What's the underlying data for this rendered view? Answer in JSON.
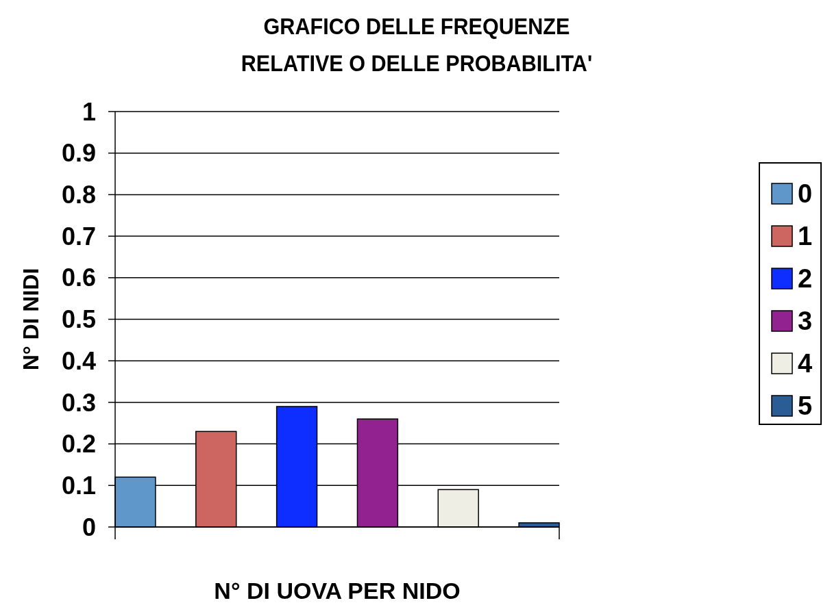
{
  "chart_data": {
    "type": "bar",
    "title": "GRAFICO DELLE FREQUENZE\nRELATIVE O DELLE PROBABILITA'",
    "xlabel": "N° DI UOVA PER NIDO",
    "ylabel": "N° DI NIDI",
    "categories": [
      null
    ],
    "series": [
      {
        "name": "0",
        "color": "#6097cb",
        "values": [
          0.12
        ]
      },
      {
        "name": "1",
        "color": "#cd6660",
        "values": [
          0.23
        ]
      },
      {
        "name": "2",
        "color": "#0d2eff",
        "values": [
          0.29
        ]
      },
      {
        "name": "3",
        "color": "#92228f",
        "values": [
          0.26
        ]
      },
      {
        "name": "4",
        "color": "#eeeee4",
        "values": [
          0.09
        ]
      },
      {
        "name": "5",
        "color": "#2a5d96",
        "values": [
          0.01
        ]
      }
    ],
    "ylim": [
      0,
      1
    ],
    "yticks": [
      0,
      0.1,
      0.2,
      0.3,
      0.4,
      0.5,
      0.6,
      0.7,
      0.8,
      0.9,
      1
    ],
    "grid": "y",
    "legend": "right"
  }
}
